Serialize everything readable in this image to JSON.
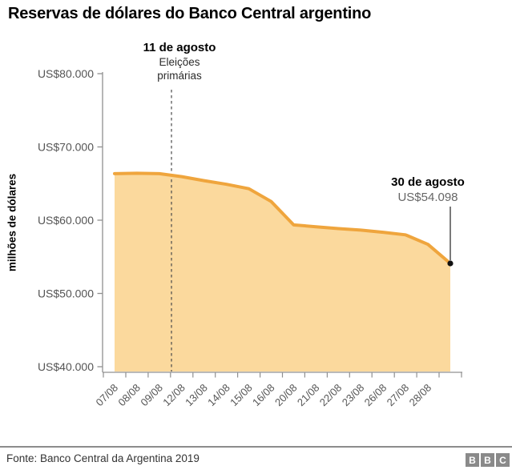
{
  "header": {
    "title": "Reservas de dólares do Banco Central argentino"
  },
  "axes": {
    "y_title": "milhões de dólares"
  },
  "annotations": {
    "elections": {
      "date": "11 de agosto",
      "line1": "Eleições",
      "line2": "primárias"
    },
    "final": {
      "date": "30 de agosto",
      "value": "US$54.098"
    }
  },
  "footer": {
    "source": "Fonte: Banco Central da Argentina 2019",
    "logo_letters": [
      "B",
      "B",
      "C"
    ]
  },
  "colors": {
    "line": "#efa53d",
    "fill": "#fbd99d",
    "axis": "#909090",
    "tick_text": "#555555",
    "dashed": "#4a4a4a",
    "callout": "#222222",
    "dot": "#111111"
  },
  "chart_data": {
    "type": "area",
    "title": "Reservas de dólares do Banco Central argentino",
    "xlabel": "",
    "ylabel": "milhões de dólares",
    "ylim": [
      40000,
      80000
    ],
    "grid": false,
    "legend": false,
    "categories": [
      "07/08",
      "08/08",
      "09/08",
      "12/08",
      "13/08",
      "14/08",
      "15/08",
      "16/08",
      "20/08",
      "21/08",
      "22/08",
      "23/08",
      "26/08",
      "27/08",
      "28/08",
      "30/08"
    ],
    "values": [
      66350,
      66400,
      66350,
      65950,
      65400,
      64900,
      64300,
      62550,
      59350,
      59100,
      58850,
      58650,
      58350,
      58000,
      56700,
      54098
    ],
    "x_tick_labels": [
      "07/08",
      "08/08",
      "09/08",
      "12/08",
      "13/08",
      "14/08",
      "15/08",
      "16/08",
      "20/08",
      "21/08",
      "22/08",
      "23/08",
      "26/08",
      "27/08",
      "28/08"
    ],
    "y_tick_labels": [
      "US$40.000",
      "US$50.000",
      "US$60.000",
      "US$70.000",
      "US$80.000"
    ],
    "y_tick_values": [
      40000,
      50000,
      60000,
      70000,
      80000
    ],
    "annotations": [
      {
        "label": "11 de agosto Eleições primárias",
        "style": "dashed-vertical-line",
        "between": [
          "09/08",
          "12/08"
        ]
      },
      {
        "label": "30 de agosto US$54.098",
        "style": "callout-dot",
        "x": "30/08",
        "y": 54098
      }
    ]
  }
}
